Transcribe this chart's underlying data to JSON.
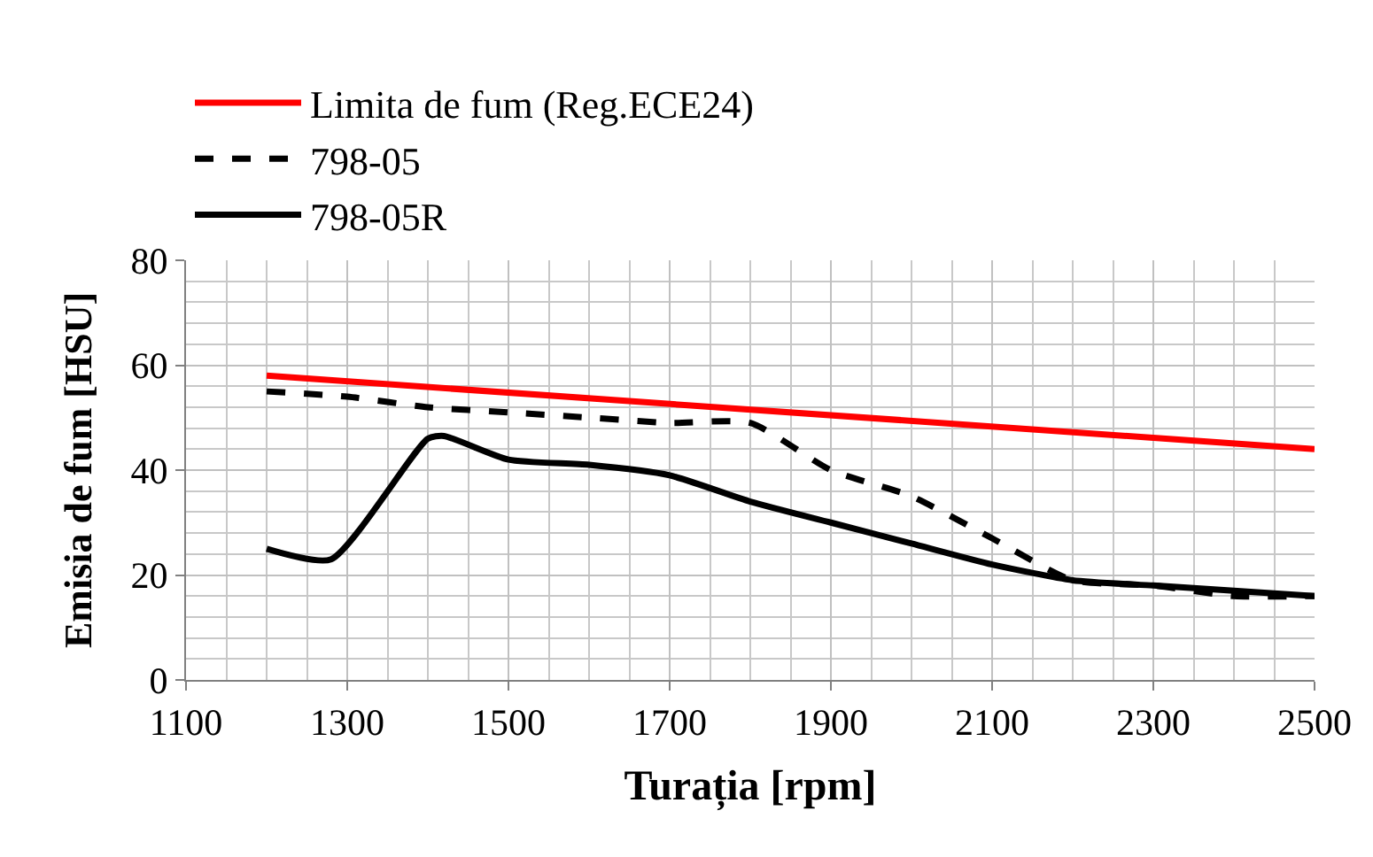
{
  "chart_data": {
    "type": "line",
    "xlabel": "Turația [rpm]",
    "ylabel": "Emisia de fum [HSU]",
    "series": [
      {
        "name": "Limita de fum (Reg.ECE24)",
        "color": "#ff0000",
        "line_style": "solid",
        "x": [
          1200,
          2500
        ],
        "values": [
          58,
          44
        ]
      },
      {
        "name": "798-05",
        "color": "#000000",
        "line_style": "dashed",
        "x": [
          1200,
          1300,
          1400,
          1500,
          1600,
          1700,
          1800,
          1900,
          2000,
          2100,
          2200,
          2300,
          2400,
          2500
        ],
        "values": [
          55,
          54,
          52,
          51,
          50,
          49,
          49,
          40,
          35,
          27,
          19,
          18,
          16,
          16
        ]
      },
      {
        "name": "798-05R",
        "color": "#000000",
        "line_style": "solid",
        "x": [
          1200,
          1280,
          1400,
          1420,
          1500,
          1600,
          1700,
          1800,
          1900,
          2000,
          2100,
          2200,
          2300,
          2400,
          2500
        ],
        "values": [
          25,
          23,
          46,
          46.5,
          42,
          41,
          39,
          34,
          30,
          26,
          22,
          19,
          18,
          17,
          16
        ]
      }
    ],
    "xlim": [
      1100,
      2500
    ],
    "xticks": [
      1100,
      1300,
      1500,
      1700,
      1900,
      2100,
      2300,
      2500
    ],
    "ylim": [
      0,
      80
    ],
    "yticks": [
      0,
      20,
      40,
      60,
      80
    ],
    "grid": true,
    "legend": "top",
    "marker": "none"
  }
}
